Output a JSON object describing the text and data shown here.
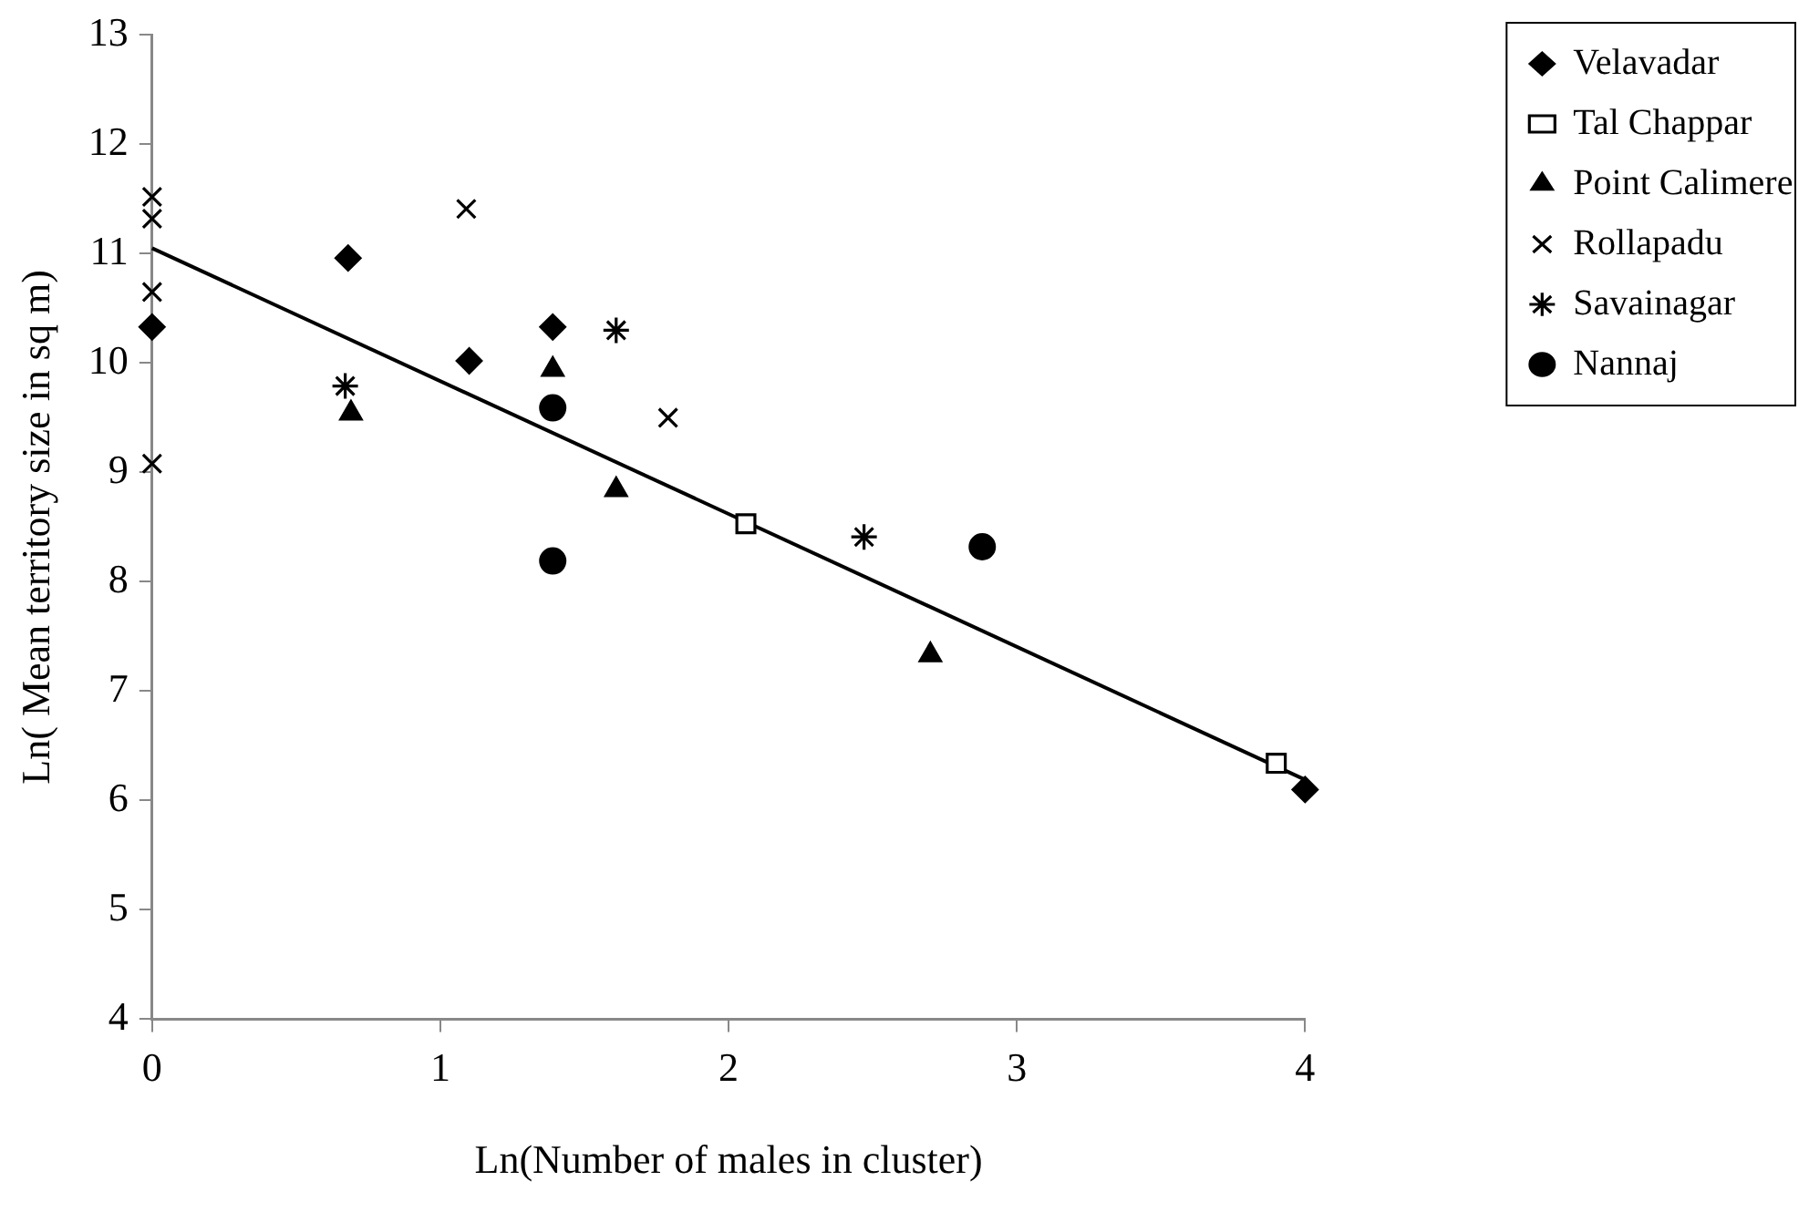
{
  "chart_data": {
    "type": "scatter",
    "xlabel": "Ln(Number of males in cluster)",
    "ylabel": "Ln( Mean territory size in sq m)",
    "xlim": [
      0,
      4
    ],
    "xticks": [
      0,
      1,
      2,
      3,
      4
    ],
    "ylim": [
      4,
      13
    ],
    "yticks": [
      4,
      5,
      6,
      7,
      8,
      9,
      10,
      11,
      12,
      13
    ],
    "grid": false,
    "legend": "top right",
    "series": [
      {
        "name": "Velavadar",
        "color": "#000000",
        "marker": "diamond",
        "x": [
          0,
          0.68,
          1.1,
          1.39,
          4.0
        ],
        "values": [
          10.33,
          10.96,
          10.02,
          10.33,
          6.1
        ]
      },
      {
        "name": "Tal Chappar",
        "color": "#000000",
        "marker": "square",
        "x": [
          2.06,
          3.9
        ],
        "values": [
          8.53,
          6.34
        ]
      },
      {
        "name": "Point Calimere",
        "color": "#000000",
        "marker": "triangle",
        "x": [
          0.69,
          1.39,
          1.61,
          2.7
        ],
        "values": [
          9.54,
          9.94,
          8.84,
          7.33
        ]
      },
      {
        "name": "Rollapadu",
        "color": "#000000",
        "marker": "cross",
        "x": [
          0,
          0,
          0,
          0,
          1.09,
          1.79
        ],
        "values": [
          11.52,
          11.32,
          10.65,
          9.08,
          11.41,
          9.5
        ]
      },
      {
        "name": "Savainagar",
        "color": "#000000",
        "x": [
          0.67,
          1.61,
          2.47
        ],
        "values": [
          9.79,
          10.3,
          8.41
        ]
      },
      {
        "name": "Nannaj",
        "color": "#000000",
        "marker": "circle",
        "x": [
          1.39,
          1.39,
          2.88
        ],
        "values": [
          9.59,
          8.19,
          8.32
        ]
      },
      {
        "type": "line",
        "color": "#000000",
        "marker": "none",
        "line_style": "solid",
        "x": [
          0,
          4
        ],
        "values": [
          11.05,
          6.19
        ]
      }
    ]
  }
}
